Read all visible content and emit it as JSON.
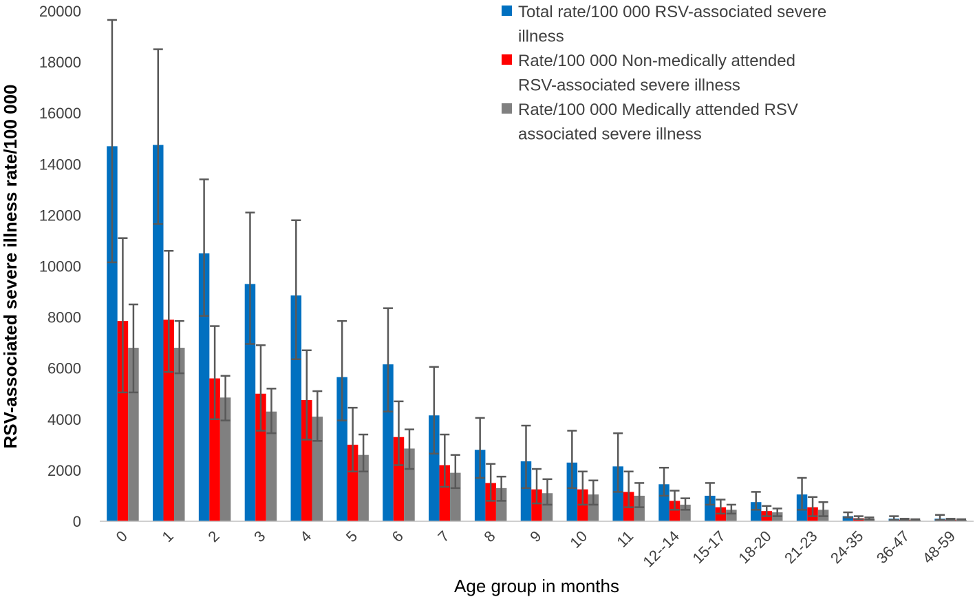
{
  "chart_data": {
    "type": "bar",
    "title": "",
    "xlabel": "Age group in months",
    "ylabel": "RSV-associated severe illness rate/100 000",
    "ylim": [
      0,
      20000
    ],
    "yticks": [
      "0",
      "2000",
      "4000",
      "6000",
      "8000",
      "10000",
      "12000",
      "14000",
      "16000",
      "18000",
      "20000"
    ],
    "ytick_values": [
      0,
      2000,
      4000,
      6000,
      8000,
      10000,
      12000,
      14000,
      16000,
      18000,
      20000
    ],
    "grid": false,
    "legend_position": "top-right",
    "categories": [
      "0",
      "1",
      "2",
      "3",
      "4",
      "5",
      "6",
      "7",
      "8",
      "9",
      "10",
      "11",
      "12--14",
      "15-17",
      "18-20",
      "21-23",
      "24-35",
      "36-47",
      "48-59"
    ],
    "series": [
      {
        "name": "Total rate/100 000 RSV-associated severe illness",
        "legend_lines": [
          "Total rate/100 000 RSV-associated severe",
          "illness"
        ],
        "color": "#0070C0",
        "values": [
          14700,
          14750,
          10500,
          9300,
          8850,
          5650,
          6150,
          4150,
          2800,
          2350,
          2300,
          2150,
          1450,
          1000,
          750,
          1050,
          200,
          100,
          100
        ],
        "error_low": [
          10150,
          11650,
          8050,
          6950,
          6350,
          3950,
          4300,
          2650,
          1700,
          1300,
          1300,
          1150,
          1000,
          650,
          450,
          450,
          150,
          50,
          50
        ],
        "error_high": [
          19650,
          18500,
          13400,
          12100,
          11800,
          7850,
          8350,
          6050,
          4050,
          3750,
          3550,
          3450,
          2100,
          1500,
          1150,
          1700,
          350,
          200,
          250
        ]
      },
      {
        "name": "Rate/100 000 Non-medically attended RSV-associated severe illness",
        "legend_lines": [
          "Rate/100 000 Non-medically attended",
          "RSV-associated severe illness"
        ],
        "color": "#FF0000",
        "values": [
          7850,
          7900,
          5600,
          5000,
          4750,
          3000,
          3300,
          2200,
          1500,
          1250,
          1250,
          1150,
          800,
          550,
          400,
          550,
          120,
          60,
          60
        ],
        "error_low": [
          5050,
          5850,
          4000,
          3550,
          3200,
          1950,
          2200,
          1350,
          800,
          700,
          650,
          550,
          450,
          300,
          200,
          200,
          80,
          40,
          40
        ],
        "error_high": [
          11100,
          10600,
          7650,
          6900,
          6700,
          4450,
          4700,
          3400,
          2250,
          2050,
          1950,
          1950,
          1200,
          850,
          600,
          950,
          200,
          100,
          100
        ]
      },
      {
        "name": "Rate/100 000 Medically attended RSV associated severe illness",
        "legend_lines": [
          "Rate/100 000 Medically attended RSV",
          "associated severe illness"
        ],
        "color": "#808080",
        "values": [
          6800,
          6800,
          4850,
          4300,
          4100,
          2600,
          2850,
          1900,
          1300,
          1100,
          1050,
          1000,
          650,
          450,
          350,
          450,
          100,
          50,
          50
        ],
        "error_low": [
          5050,
          5800,
          3950,
          3450,
          3150,
          1950,
          2050,
          1300,
          800,
          650,
          650,
          550,
          450,
          300,
          200,
          200,
          70,
          30,
          30
        ],
        "error_high": [
          8500,
          7850,
          5700,
          5200,
          5100,
          3400,
          3600,
          2600,
          1750,
          1650,
          1600,
          1500,
          900,
          650,
          500,
          750,
          150,
          80,
          80
        ]
      }
    ]
  }
}
